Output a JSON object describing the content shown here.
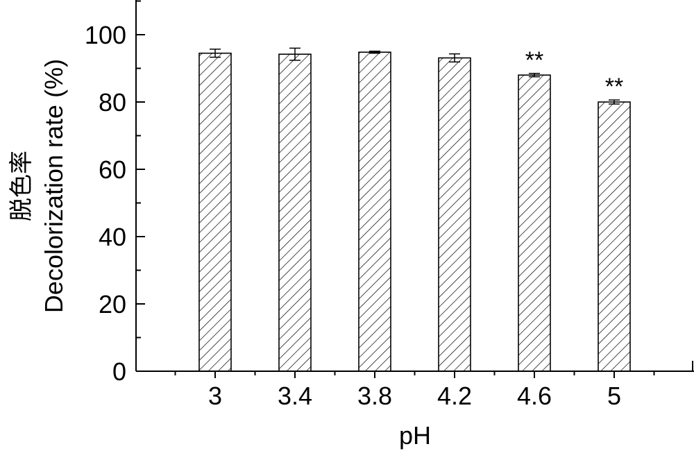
{
  "chart_data": {
    "type": "bar",
    "categories": [
      "3",
      "3.4",
      "3.8",
      "4.2",
      "4.6",
      "5"
    ],
    "values": [
      94.5,
      94.2,
      94.8,
      93.1,
      88.0,
      80.0
    ],
    "errors": [
      1.2,
      1.8,
      0.3,
      1.2,
      0.5,
      0.6
    ],
    "significance": [
      "",
      "",
      "",
      "",
      "**",
      "**"
    ],
    "xlabel": "pH",
    "ylabel": "Decolorization rate (%)",
    "ylabel_cn": "脱色率",
    "yticks": [
      0,
      20,
      40,
      60,
      80,
      100
    ],
    "ylim": [
      0,
      110
    ],
    "bar_fill": "hatched",
    "colors": {
      "bar_stroke": "#000000",
      "hatch": "#000000",
      "background": "#ffffff"
    }
  }
}
